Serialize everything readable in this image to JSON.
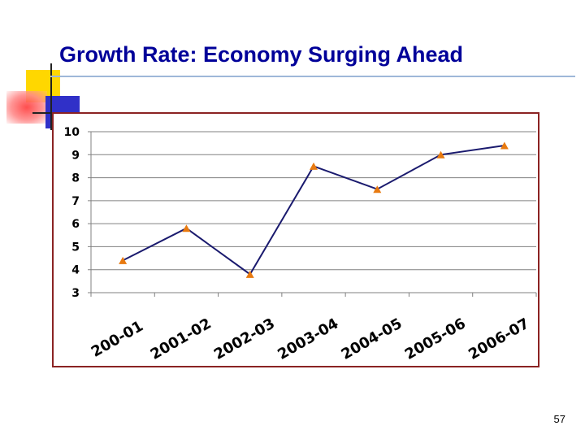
{
  "slide": {
    "title": "Growth Rate: Economy Surging Ahead",
    "page_number": "57"
  },
  "colors": {
    "title": "#000099",
    "line": "#1a1a6e",
    "marker": "#e87a10",
    "chart_border": "#8b2323",
    "title_rule": "#9fb8d9"
  },
  "chart_data": {
    "type": "line",
    "title": "",
    "xlabel": "",
    "ylabel": "",
    "categories": [
      "200-01",
      "2001-02",
      "2002-03",
      "2003-04",
      "2004-05",
      "2005-06",
      "2006-07"
    ],
    "series": [
      {
        "values": [
          4.4,
          5.8,
          3.8,
          8.5,
          7.5,
          9.0,
          9.4
        ]
      }
    ],
    "ylim": [
      3,
      10
    ],
    "yticks": [
      3,
      4,
      5,
      6,
      7,
      8,
      9,
      10
    ],
    "grid": true,
    "legend": "none",
    "marker": "triangle"
  }
}
